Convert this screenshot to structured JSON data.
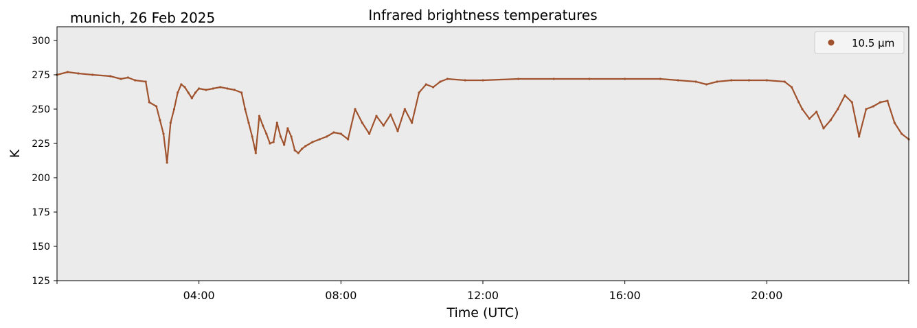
{
  "chart_data": {
    "type": "scatter",
    "title": "Infrared brightness temperatures",
    "subtitle": "munich, 26 Feb 2025",
    "xlabel": "Time (UTC)",
    "ylabel": "K",
    "xlim": [
      "00:00",
      "24:00"
    ],
    "ylim": [
      125,
      310
    ],
    "x_ticks": [
      "04:00",
      "08:00",
      "12:00",
      "16:00",
      "20:00"
    ],
    "y_ticks": [
      125,
      150,
      175,
      200,
      225,
      250,
      275,
      300
    ],
    "grid": false,
    "legend_position": "top-right",
    "background_color": "#ebebeb",
    "series": [
      {
        "name": "10.5 µm",
        "color": "#a0522d",
        "x_hours": [
          0.0,
          0.3,
          0.6,
          1.0,
          1.5,
          1.8,
          2.0,
          2.2,
          2.5,
          2.6,
          2.8,
          2.9,
          3.0,
          3.1,
          3.2,
          3.3,
          3.4,
          3.5,
          3.6,
          3.7,
          3.8,
          3.9,
          4.0,
          4.2,
          4.4,
          4.6,
          4.8,
          5.0,
          5.2,
          5.3,
          5.4,
          5.5,
          5.6,
          5.7,
          5.8,
          5.9,
          6.0,
          6.1,
          6.2,
          6.3,
          6.4,
          6.5,
          6.6,
          6.7,
          6.8,
          6.9,
          7.0,
          7.2,
          7.4,
          7.6,
          7.8,
          8.0,
          8.2,
          8.4,
          8.6,
          8.8,
          9.0,
          9.2,
          9.4,
          9.6,
          9.8,
          10.0,
          10.2,
          10.4,
          10.6,
          10.8,
          11.0,
          11.5,
          12.0,
          13.0,
          14.0,
          15.0,
          16.0,
          17.0,
          17.5,
          18.0,
          18.3,
          18.6,
          19.0,
          19.5,
          20.0,
          20.5,
          20.7,
          20.9,
          21.0,
          21.2,
          21.4,
          21.6,
          21.8,
          22.0,
          22.2,
          22.4,
          22.6,
          22.8,
          23.0,
          23.2,
          23.4,
          23.6,
          23.8,
          24.0
        ],
        "values": [
          275,
          277,
          276,
          275,
          274,
          272,
          273,
          271,
          270,
          255,
          252,
          242,
          232,
          211,
          240,
          250,
          262,
          268,
          266,
          262,
          258,
          262,
          265,
          264,
          265,
          266,
          265,
          264,
          262,
          250,
          240,
          230,
          218,
          245,
          238,
          232,
          225,
          226,
          240,
          230,
          224,
          236,
          230,
          220,
          218,
          221,
          223,
          226,
          228,
          230,
          233,
          232,
          228,
          250,
          240,
          232,
          245,
          238,
          246,
          234,
          250,
          240,
          262,
          268,
          266,
          270,
          272,
          271,
          271,
          272,
          272,
          272,
          272,
          272,
          271,
          270,
          268,
          270,
          271,
          271,
          271,
          270,
          266,
          255,
          250,
          243,
          248,
          236,
          242,
          250,
          260,
          255,
          230,
          250,
          252,
          255,
          256,
          240,
          232,
          228
        ]
      }
    ]
  }
}
